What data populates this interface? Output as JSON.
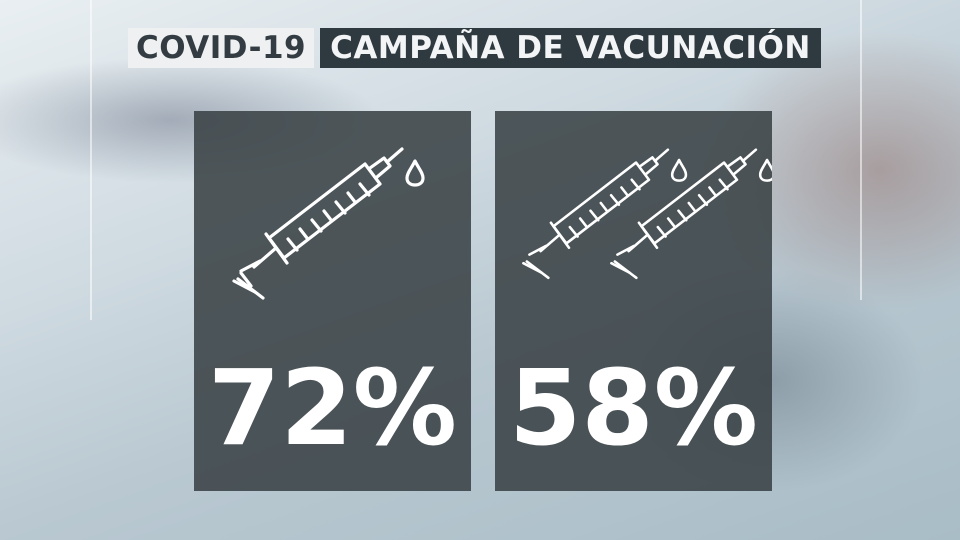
{
  "header": {
    "tag": "COVID-19",
    "title": "CAMPAÑA DE VACUNACIÓN"
  },
  "panels": [
    {
      "icon": "single-syringe-icon",
      "value": "72%"
    },
    {
      "icon": "double-syringe-icon",
      "value": "58%"
    }
  ],
  "colors": {
    "panel": "#3a4246",
    "title_dark": "#2f3a40",
    "title_light": "#eef0f1",
    "text": "#ffffff"
  }
}
